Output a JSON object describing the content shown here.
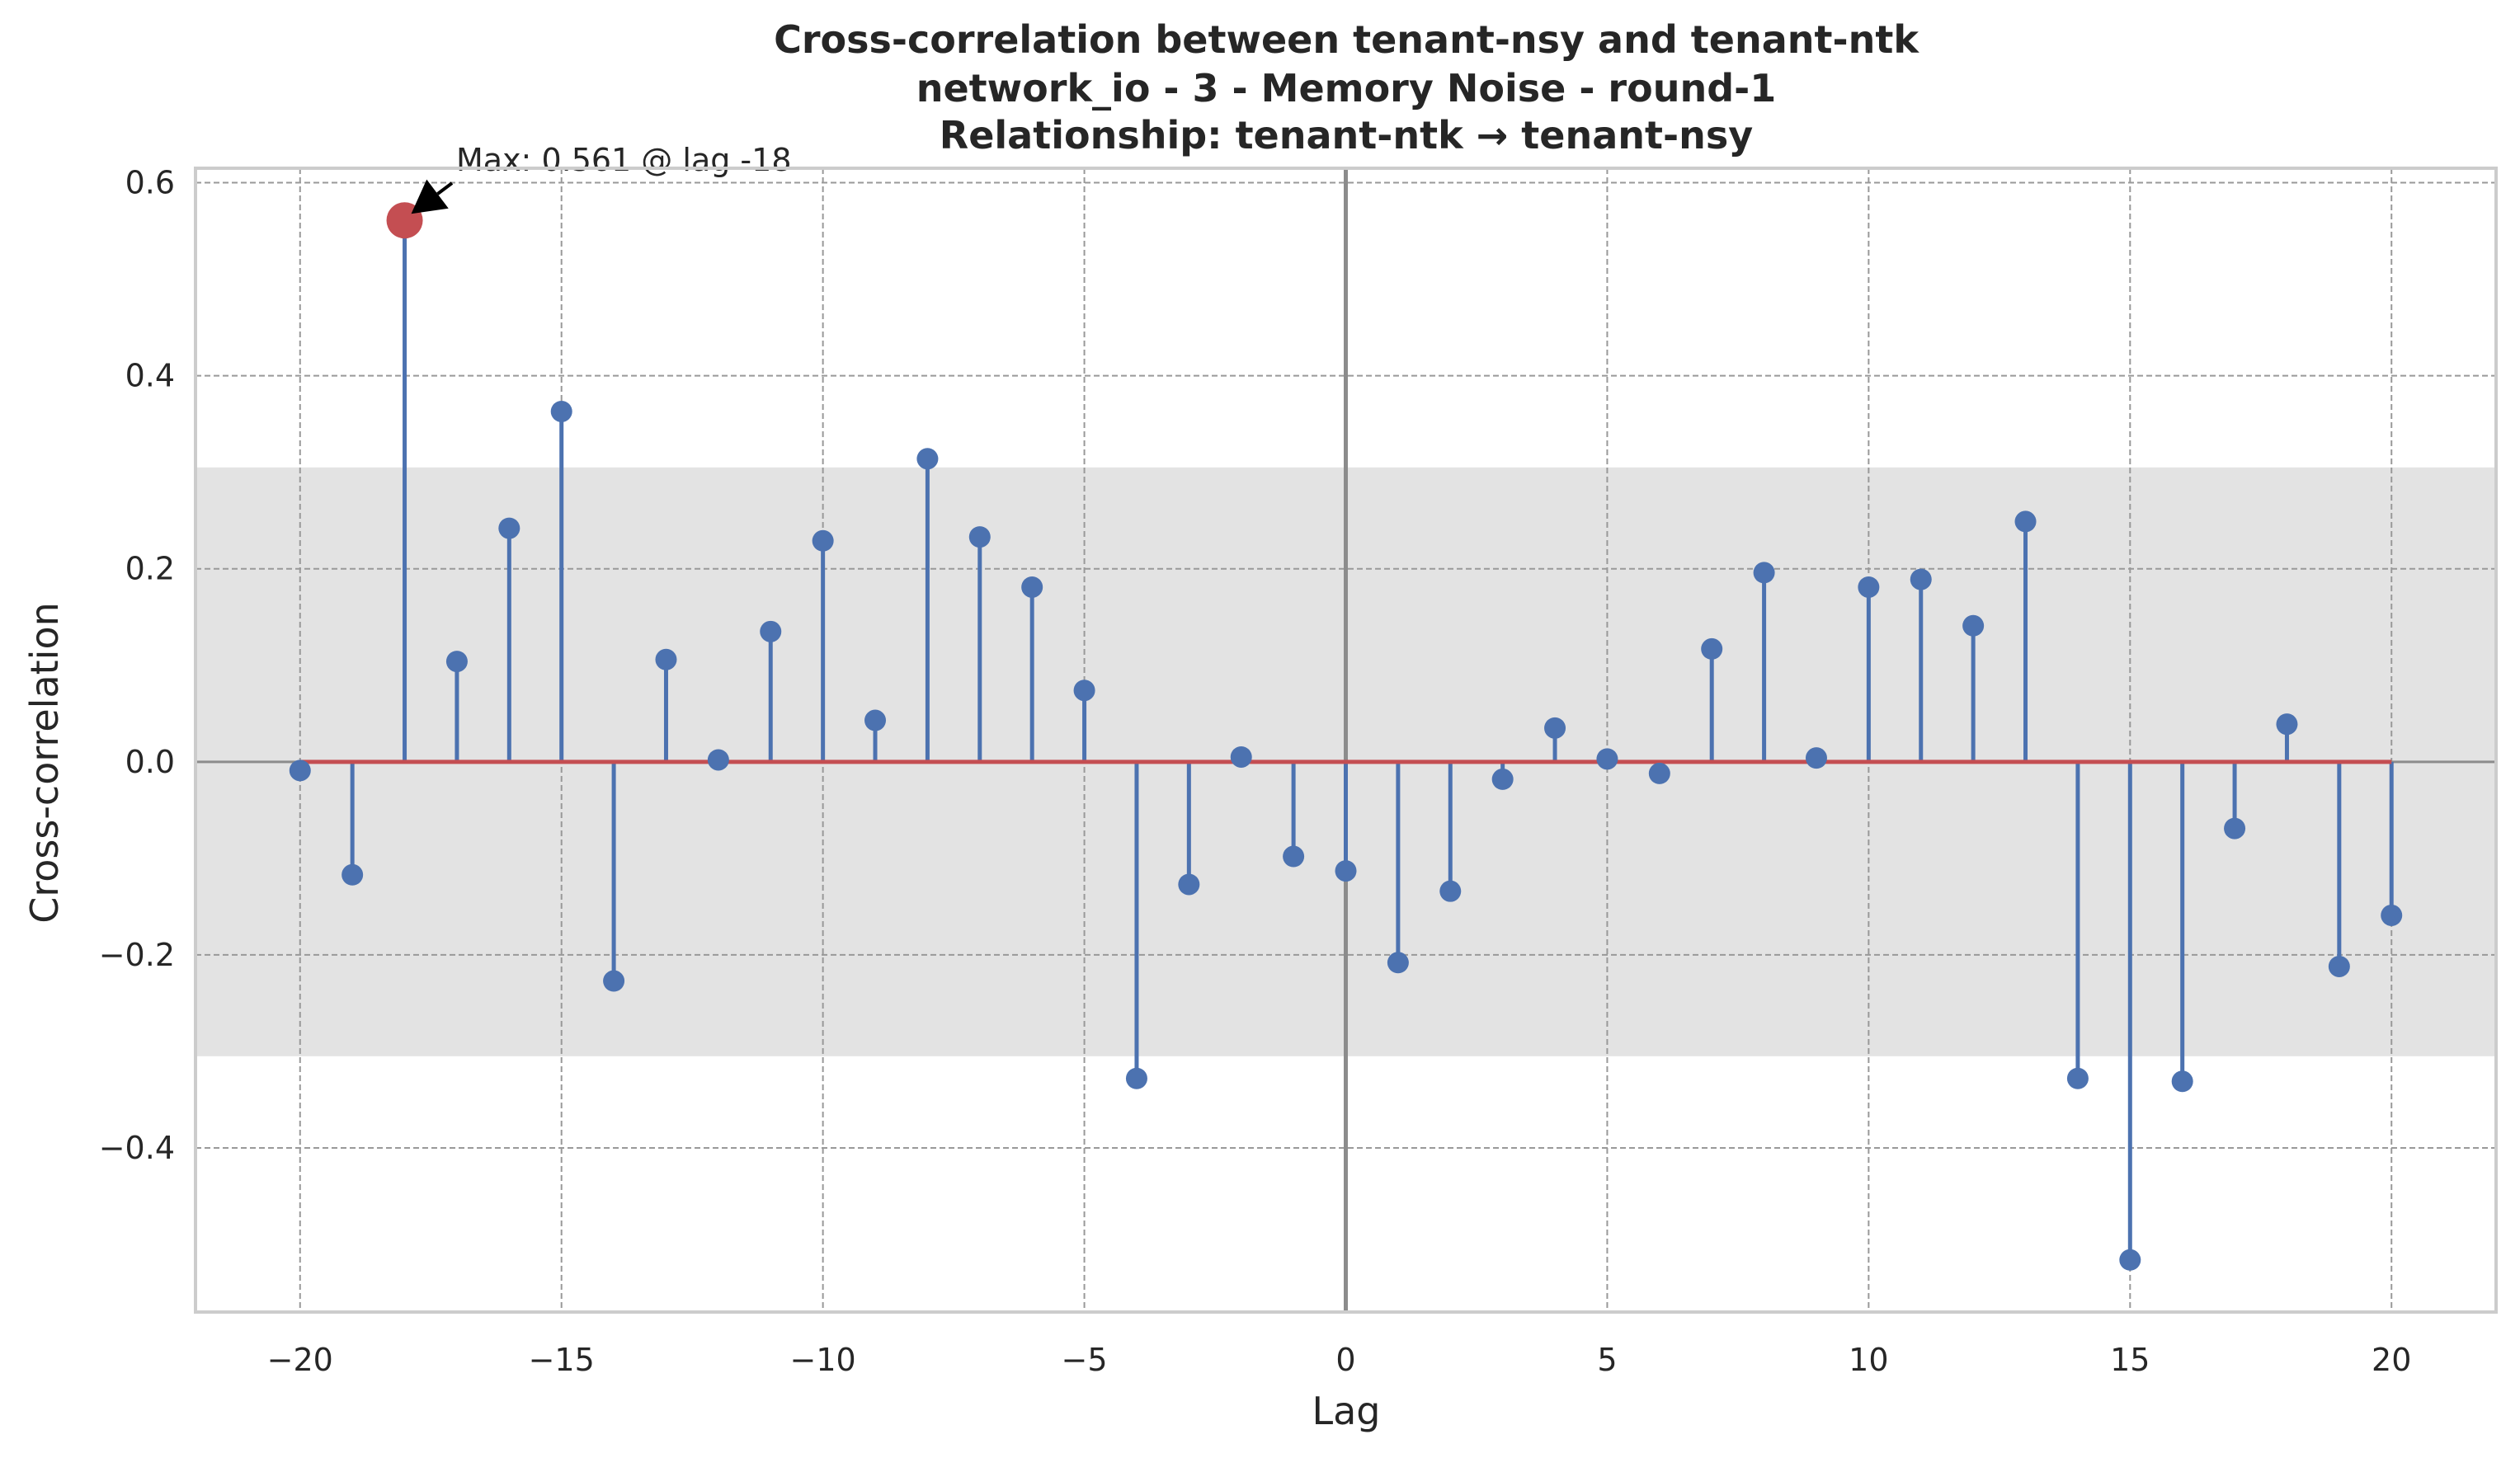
{
  "chart_data": {
    "type": "stem",
    "title_lines": [
      "Cross-correlation between tenant-nsy and tenant-ntk",
      "network_io - 3 - Memory Noise - round-1",
      "Relationship: tenant-ntk → tenant-nsy"
    ],
    "xlabel": "Lag",
    "ylabel": "Cross-correlation",
    "xlim": [
      -22,
      22
    ],
    "ylim": [
      -0.57,
      0.615
    ],
    "x_ticks": [
      -20,
      -15,
      -10,
      -5,
      0,
      5,
      10,
      15,
      20
    ],
    "x_tick_labels": [
      "−20",
      "−15",
      "−10",
      "−5",
      "0",
      "5",
      "10",
      "15",
      "20"
    ],
    "y_ticks": [
      -0.4,
      -0.2,
      0.0,
      0.2,
      0.4,
      0.6
    ],
    "y_tick_labels": [
      "−0.4",
      "−0.2",
      "0.0",
      "0.2",
      "0.4",
      "0.6"
    ],
    "grid": true,
    "significance_band": [
      -0.305,
      0.305
    ],
    "lags": [
      -20,
      -19,
      -18,
      -17,
      -16,
      -15,
      -14,
      -13,
      -12,
      -11,
      -10,
      -9,
      -8,
      -7,
      -6,
      -5,
      -4,
      -3,
      -2,
      -1,
      0,
      1,
      2,
      3,
      4,
      5,
      6,
      7,
      8,
      9,
      10,
      11,
      12,
      13,
      14,
      15,
      16,
      17,
      18,
      19,
      20
    ],
    "values": [
      -0.009,
      -0.117,
      0.561,
      0.104,
      0.242,
      0.363,
      -0.227,
      0.106,
      0.002,
      0.135,
      0.229,
      0.043,
      0.314,
      0.233,
      0.181,
      0.074,
      -0.328,
      -0.127,
      0.005,
      -0.098,
      -0.113,
      -0.208,
      -0.134,
      -0.018,
      0.035,
      0.003,
      -0.012,
      0.117,
      0.196,
      0.004,
      0.181,
      0.189,
      0.141,
      0.249,
      -0.328,
      -0.516,
      -0.331,
      -0.069,
      0.039,
      -0.212,
      -0.159
    ],
    "max_point": {
      "lag": -18,
      "value": 0.561
    },
    "annotation": "Max: 0.561 @ lag -18",
    "colors": {
      "stem": "#4c72b0",
      "baseline": "#c44e52",
      "max_marker": "#c44e52",
      "band": "#e3e3e3",
      "zero_lag_line": "#8c8c8c",
      "grid": "#999999",
      "frame": "#cccccc"
    }
  }
}
